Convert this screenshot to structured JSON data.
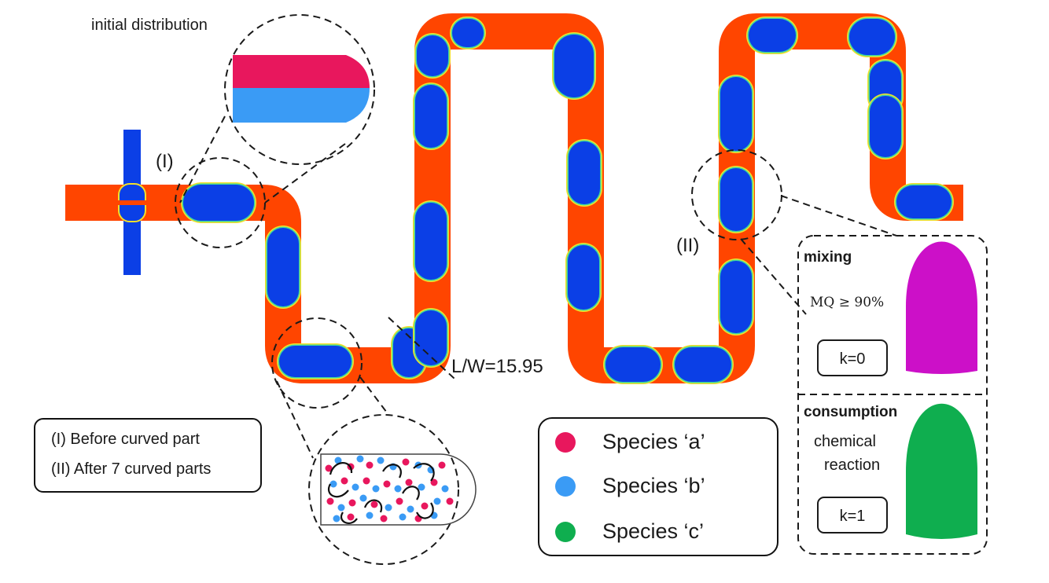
{
  "labels": {
    "initial_distribution": "initial distribution",
    "marker_one": "(I)",
    "marker_two": "(II)",
    "length_ratio": "L/W=15.95"
  },
  "legend": {
    "items": [
      {
        "label": "Species ‘a’",
        "color": "#e8175d"
      },
      {
        "label": "Species ‘b’",
        "color": "#3a9bf5"
      },
      {
        "label": "Species ‘c’",
        "color": "#0fae4f"
      }
    ]
  },
  "notes": {
    "line_one": "(I) Before  curved part",
    "line_two": "(II) After 7 curved parts"
  },
  "panels": {
    "mixing": {
      "title": "mixing",
      "criterion": "MQ ≥ 90%",
      "k_label": "k=0",
      "color": "#cc10c8"
    },
    "consumption": {
      "title": "consumption",
      "line_one": "chemical",
      "line_two": "reaction",
      "k_label": "k=1",
      "color": "#0fae4f"
    }
  },
  "colors": {
    "channel": "#ff4500",
    "droplet": "#0b3fe6",
    "droplet_rim_outer": "#3dd6a2",
    "droplet_rim_inner": "#f2e02a",
    "species_a": "#e8175d",
    "species_b": "#3a9bf5"
  }
}
